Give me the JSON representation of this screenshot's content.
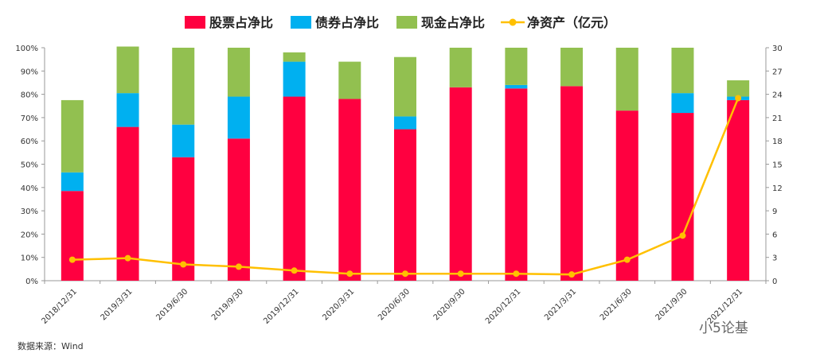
{
  "chart_data": {
    "type": "bar",
    "stacked": true,
    "categories": [
      "2018/12/31",
      "2019/3/31",
      "2019/6/30",
      "2019/9/30",
      "2019/12/31",
      "2020/3/31",
      "2020/6/30",
      "2020/9/30",
      "2020/12/31",
      "2021/3/31",
      "2021/6/30",
      "2021/9/30",
      "2021/12/31"
    ],
    "series": [
      {
        "name": "股票占净比",
        "type": "bar",
        "axis": "left",
        "color": "#ff0040",
        "values": [
          38.5,
          66,
          53,
          61,
          79,
          78,
          65,
          83,
          82.5,
          83.5,
          73,
          72,
          77.5
        ]
      },
      {
        "name": "债券占净比",
        "type": "bar",
        "axis": "left",
        "color": "#00b0f0",
        "values": [
          8,
          14.5,
          14,
          18,
          15,
          0,
          5.5,
          0,
          1.5,
          0,
          0,
          8.5,
          1.5
        ]
      },
      {
        "name": "现金占净比",
        "type": "bar",
        "axis": "left",
        "color": "#92c050",
        "values": [
          31,
          20,
          33,
          21,
          4,
          16,
          25.5,
          17,
          16,
          16.5,
          27,
          19.5,
          7
        ]
      },
      {
        "name": "净资产（亿元）",
        "type": "line",
        "axis": "right",
        "color": "#ffc000",
        "values": [
          2.7,
          2.9,
          2.1,
          1.8,
          1.3,
          0.9,
          0.9,
          0.9,
          0.9,
          0.8,
          2.7,
          5.8,
          23.5
        ]
      }
    ],
    "y_left": {
      "min": 0,
      "max": 100,
      "ticks": [
        "0%",
        "10%",
        "20%",
        "30%",
        "40%",
        "50%",
        "60%",
        "70%",
        "80%",
        "90%",
        "100%"
      ]
    },
    "y_right": {
      "min": 0,
      "max": 30,
      "ticks": [
        "0",
        "3",
        "6",
        "9",
        "12",
        "15",
        "18",
        "21",
        "24",
        "27",
        "30"
      ]
    },
    "legend_position": "top",
    "grid": false
  },
  "source_text": "数据来源：Wind",
  "watermark_text": "小5论基"
}
